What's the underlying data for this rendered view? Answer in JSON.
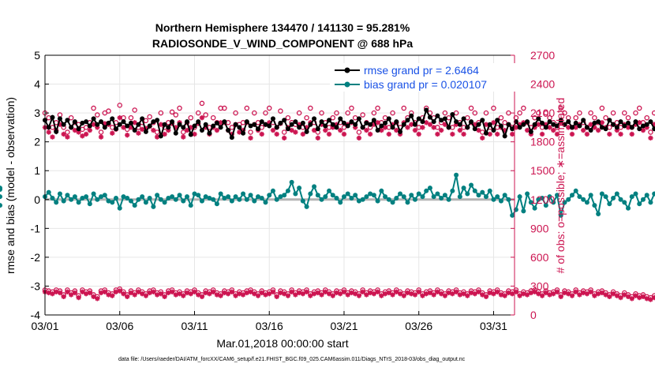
{
  "chart_data": {
    "type": "line",
    "title_line1": "Northern Hemisphere 134470 / 141130 = 95.281%",
    "title_line2": "RADIOSONDE_V_WIND_COMPONENT @ 688 hPa",
    "xlabel": "Mar.01,2018 00:00:00 start",
    "ylabel_left": "rmse and bias (model - observation)",
    "ylabel_right": "# of obs: o=possible; ∗=assimilated",
    "footnote": "data file: /Users/raeder/DAI/ATM_forcXX/CAM6_setup/f.e21.FHIST_BGC.f09_025.CAM6assim.011/Diags_NTrS_2018-03/obs_diag_output.nc",
    "xlim": [
      0,
      31.4
    ],
    "ylim_left": [
      -4,
      5
    ],
    "ylim_right": [
      0,
      2700
    ],
    "x_tick_values": [
      0,
      5,
      10,
      15,
      20,
      25,
      30
    ],
    "x_tick_labels": [
      "03/01",
      "03/06",
      "03/11",
      "03/16",
      "03/21",
      "03/26",
      "03/31"
    ],
    "y_left_ticks": [
      -4,
      -3,
      -2,
      -1,
      0,
      1,
      2,
      3,
      4,
      5
    ],
    "y_right_ticks": [
      0,
      300,
      600,
      900,
      1200,
      1500,
      1800,
      2100,
      2400,
      2700
    ],
    "grid": true,
    "legend": {
      "placement": "top-right",
      "entries": [
        "rmse grand pr = 2.6464",
        "bias grand pr = 0.020107"
      ]
    },
    "colors": {
      "rmse": "#000000",
      "bias": "#008080",
      "obs_count": "#cc1551",
      "zero_line": "#b3b3b3",
      "grid": "#e6e6e6"
    },
    "x_step_days": 0.25,
    "rmse": [
      2.75,
      2.5,
      2.85,
      2.35,
      2.8,
      2.6,
      2.75,
      2.5,
      2.7,
      2.45,
      2.65,
      2.7,
      2.55,
      2.8,
      2.6,
      2.7,
      2.5,
      2.65,
      2.8,
      2.45,
      2.6,
      2.7,
      2.55,
      2.65,
      2.4,
      2.6,
      2.8,
      2.35,
      2.55,
      2.7,
      2.75,
      2.2,
      2.6,
      2.5,
      2.7,
      2.3,
      2.6,
      2.5,
      2.7,
      2.25,
      2.55,
      2.7,
      2.4,
      2.6,
      2.3,
      2.55,
      2.65,
      2.5,
      2.7,
      2.4,
      2.15,
      2.6,
      2.5,
      2.3,
      2.7,
      2.55,
      2.6,
      2.45,
      2.7,
      2.6,
      2.55,
      2.8,
      2.5,
      2.65,
      2.75,
      2.45,
      2.6,
      2.7,
      2.5,
      2.65,
      2.35,
      2.6,
      2.8,
      2.45,
      2.7,
      2.55,
      2.75,
      2.6,
      2.5,
      2.8,
      2.65,
      2.55,
      2.7,
      2.6,
      2.8,
      2.5,
      2.65,
      2.6,
      2.75,
      2.4,
      2.55,
      2.65,
      2.8,
      2.5,
      2.7,
      2.35,
      2.6,
      2.75,
      2.9,
      2.6,
      2.8,
      2.7,
      3.1,
      2.85,
      2.7,
      2.9,
      2.75,
      2.8,
      2.5,
      2.95,
      2.7,
      2.6,
      2.8,
      2.5,
      2.7,
      2.45,
      2.6,
      2.75,
      2.3,
      2.6,
      2.4,
      2.75,
      2.55,
      2.2,
      2.6,
      2.45,
      2.7,
      2.5,
      2.6,
      2.7,
      2.35,
      2.6,
      2.8,
      2.65,
      2.5,
      2.7,
      2.6,
      2.55,
      2.75,
      2.6,
      2.7,
      2.5,
      2.65,
      2.55,
      2.75,
      2.5,
      2.4,
      2.65,
      2.7,
      2.5,
      2.45,
      2.75,
      2.6,
      2.5,
      2.7,
      2.55,
      2.65,
      2.5,
      2.7,
      2.45,
      2.55,
      2.6,
      2.7,
      2.45,
      2.6,
      2.5,
      2.7,
      2.55,
      2.65,
      2.5,
      2.6,
      2.55,
      2.7,
      2.4
    ],
    "bias": [
      0.1,
      0.25,
      0.05,
      -0.1,
      0.2,
      -0.05,
      0.15,
      0.0,
      0.1,
      -0.1,
      0.05,
      0.1,
      -0.15,
      0.2,
      0.0,
      0.1,
      0.15,
      -0.05,
      -0.1,
      0.05,
      -0.3,
      0.1,
      0.05,
      -0.05,
      -0.2,
      0.0,
      0.1,
      -0.1,
      0.05,
      -0.25,
      0.15,
      0.0,
      -0.1,
      0.05,
      0.1,
      0.0,
      0.15,
      -0.05,
      0.1,
      -0.2,
      0.2,
      0.15,
      -0.05,
      0.1,
      0.05,
      0.0,
      -0.15,
      0.2,
      0.05,
      0.1,
      -0.05,
      0.1,
      0.0,
      0.2,
      0.0,
      0.15,
      -0.05,
      0.1,
      0.05,
      -0.1,
      0.15,
      0.3,
      0.0,
      0.1,
      0.15,
      0.3,
      0.6,
      0.2,
      0.4,
      -0.05,
      -0.25,
      0.2,
      0.45,
      0.15,
      0.0,
      0.1,
      0.3,
      0.15,
      0.05,
      -0.1,
      0.1,
      0.2,
      0.05,
      0.15,
      -0.05,
      0.0,
      0.1,
      0.2,
      0.15,
      -0.05,
      0.3,
      0.1,
      0.0,
      -0.1,
      0.05,
      0.2,
      0.1,
      -0.1,
      0.15,
      0.0,
      0.2,
      0.1,
      0.3,
      0.4,
      0.1,
      0.2,
      0.05,
      0.15,
      0.0,
      0.3,
      0.85,
      0.1,
      0.4,
      0.2,
      0.5,
      0.3,
      0.15,
      0.25,
      0.1,
      0.3,
      0.0,
      0.1,
      -0.05,
      0.15,
      0.0,
      -0.55,
      -0.35,
      0.1,
      -0.4,
      0.2,
      -0.1,
      -0.3,
      0.0,
      0.05,
      -0.2,
      0.1,
      -0.1,
      0.15,
      -0.55,
      -0.1,
      0.0,
      0.15,
      0.3,
      0.1,
      0.0,
      -0.1,
      0.15,
      -0.2,
      -0.5,
      0.2,
      0.1,
      -0.15,
      0.05,
      0.2,
      0.0,
      -0.1,
      -0.3,
      0.1,
      0.2,
      -0.15,
      0.0,
      0.15,
      -0.1,
      0.2,
      0.0,
      -0.35,
      0.1,
      -0.2,
      0.05,
      -0.15,
      0.1,
      -0.25,
      0.0,
      0.2,
      0.35,
      0.4,
      0.1,
      -0.2
    ],
    "possible_obs": [
      2100,
      2050,
      1950,
      2000,
      2080,
      1950,
      1900,
      2050,
      2000,
      1980,
      1930,
      1950,
      2000,
      2150,
      2080,
      1900,
      2100,
      2120,
      1950,
      2000,
      2180,
      2050,
      1930,
      2050,
      2130,
      1950,
      2000,
      2020,
      2060,
      2000,
      1900,
      2100,
      1950,
      2000,
      2110,
      2080,
      2150,
      1900,
      2000,
      2050,
      1950,
      2100,
      2200,
      2080,
      1950,
      2050,
      2000,
      2150,
      2150,
      2000,
      1950,
      2100,
      1980,
      2000,
      2150,
      1900,
      2100,
      2000,
      1950,
      2100,
      2150,
      2000,
      1950,
      2120,
      1900,
      2050,
      2000,
      1980,
      2100,
      1950,
      2050,
      2150,
      2000,
      1900,
      2100,
      2000,
      1950,
      2050,
      2100,
      2000,
      1950,
      2100,
      2150,
      2050,
      1900,
      2080,
      2000,
      1950,
      2100,
      2150,
      2000,
      2050,
      1950,
      2100,
      2000,
      1950,
      2150,
      2050,
      2100,
      2000,
      1950,
      2050,
      2150,
      2100,
      2050,
      1950,
      2000,
      2100,
      2050,
      1950,
      2100,
      2000,
      1950,
      2050,
      2150,
      2100,
      2000,
      1900,
      2100,
      1950,
      2150,
      1950,
      2050,
      2000,
      2100,
      1950,
      2050,
      2100,
      2150,
      2000,
      1950,
      2050,
      2100,
      1950,
      2100,
      2050,
      2000,
      1950,
      2150,
      2100,
      2050,
      1950,
      2050,
      2100,
      2000,
      1950,
      2100,
      2050,
      2000,
      2150,
      2050,
      1950,
      2100,
      2000,
      1950,
      2100,
      2050,
      1950,
      2100,
      2150,
      2000,
      2050,
      1900,
      2100,
      2000,
      1950,
      2050,
      1950,
      2100,
      2000,
      2050,
      2000,
      1900,
      2050,
      1950,
      2100
    ],
    "assimilated_obs": [
      1950,
      1900,
      1850,
      1920,
      1980,
      1880,
      1850,
      1950,
      1920,
      1900,
      1860,
      1880,
      1920,
      1980,
      1950,
      1850,
      1990,
      1980,
      1890,
      1930,
      2050,
      1950,
      1870,
      1950,
      2000,
      1890,
      1930,
      1940,
      1960,
      1920,
      1850,
      1980,
      1880,
      1920,
      1990,
      1950,
      2000,
      1850,
      1920,
      1950,
      1880,
      1990,
      2050,
      1950,
      1880,
      1950,
      1920,
      2000,
      2000,
      1920,
      1880,
      1980,
      1900,
      1920,
      2000,
      1840,
      1980,
      1920,
      1880,
      1980,
      2000,
      1920,
      1880,
      1990,
      1840,
      1950,
      1920,
      1900,
      1980,
      1880,
      1950,
      2000,
      1920,
      1840,
      1980,
      1920,
      1880,
      1950,
      1980,
      1920,
      1880,
      1980,
      2000,
      1950,
      1840,
      1950,
      1920,
      1880,
      1980,
      2000,
      1920,
      1950,
      1880,
      1980,
      1920,
      1880,
      2000,
      1950,
      1980,
      1920,
      1880,
      1950,
      2000,
      1980,
      1950,
      1880,
      1920,
      1980,
      1950,
      1880,
      1980,
      1920,
      1880,
      1950,
      2000,
      1980,
      1920,
      1840,
      1980,
      1880,
      2000,
      1880,
      1950,
      1920,
      1980,
      1880,
      1950,
      1980,
      2000,
      1920,
      1880,
      1950,
      1980,
      1880,
      1980,
      1950,
      1920,
      1880,
      2000,
      1980,
      1950,
      1880,
      1950,
      1980,
      1920,
      1880,
      1980,
      1950,
      1920,
      2000,
      1950,
      1880,
      1980,
      1920,
      1880,
      1980,
      1950,
      1880,
      1980,
      2000,
      1920,
      1950,
      1840,
      1980,
      1920,
      1880,
      1950,
      1880,
      1980,
      1920,
      1950,
      1920,
      1840,
      1950,
      1880,
      1980
    ],
    "low_possible": [
      260,
      250,
      240,
      260,
      250,
      210,
      260,
      230,
      250,
      200,
      260,
      240,
      250,
      210,
      190,
      250,
      260,
      230,
      220,
      260,
      270,
      240,
      210,
      250,
      230,
      260,
      240,
      220,
      250,
      260,
      230,
      240,
      210,
      250,
      260,
      230,
      240,
      220,
      250,
      240,
      260,
      230,
      210,
      250,
      240,
      260,
      230,
      220,
      250,
      240,
      260,
      220,
      240,
      230,
      250,
      260,
      240,
      220,
      250,
      230,
      240,
      260,
      210,
      250,
      240,
      220,
      260,
      230,
      250,
      240,
      260,
      220,
      240,
      250,
      230,
      260,
      240,
      220,
      250,
      240,
      260,
      230,
      250,
      240,
      220,
      260,
      230,
      250,
      240,
      260,
      220,
      240,
      250,
      230,
      260,
      240,
      220,
      250,
      240,
      230,
      260,
      220,
      240,
      250,
      230,
      260,
      240,
      220,
      250,
      240,
      260,
      230,
      240,
      220,
      250,
      240,
      260,
      230,
      210,
      250,
      240,
      260,
      230,
      220,
      250,
      240,
      260,
      220,
      240,
      230,
      250,
      260,
      240,
      220,
      250,
      230,
      240,
      260,
      210,
      250,
      240,
      220,
      260,
      230,
      250,
      240,
      260,
      220,
      240,
      250,
      230,
      210,
      240,
      220,
      200,
      230,
      210,
      190,
      220,
      200,
      210,
      190,
      180,
      200,
      190,
      170,
      180,
      160,
      150,
      130
    ],
    "low_assimilated": [
      240,
      230,
      220,
      240,
      230,
      190,
      240,
      210,
      230,
      180,
      240,
      220,
      230,
      190,
      170,
      230,
      240,
      210,
      200,
      240,
      250,
      220,
      190,
      230,
      210,
      240,
      220,
      200,
      230,
      240,
      210,
      220,
      190,
      230,
      240,
      210,
      220,
      200,
      230,
      220,
      240,
      210,
      190,
      230,
      220,
      240,
      210,
      200,
      230,
      220,
      240,
      200,
      220,
      210,
      230,
      240,
      220,
      200,
      230,
      210,
      220,
      240,
      190,
      230,
      220,
      200,
      240,
      210,
      230,
      220,
      240,
      200,
      220,
      230,
      210,
      240,
      220,
      200,
      230,
      220,
      240,
      210,
      230,
      220,
      200,
      240,
      210,
      230,
      220,
      240,
      200,
      220,
      230,
      210,
      240,
      220,
      200,
      230,
      220,
      210,
      240,
      200,
      220,
      230,
      210,
      240,
      220,
      200,
      230,
      220,
      240,
      210,
      220,
      200,
      230,
      220,
      240,
      210,
      190,
      230,
      220,
      240,
      210,
      200,
      230,
      220,
      240,
      200,
      220,
      210,
      230,
      240,
      220,
      200,
      230,
      210,
      220,
      240,
      190,
      230,
      220,
      200,
      240,
      210,
      230,
      220,
      240,
      200,
      220,
      230,
      210,
      190,
      220,
      200,
      180,
      210,
      190,
      170,
      200,
      180,
      190,
      170,
      160,
      180,
      170,
      150,
      160,
      140,
      130,
      110
    ]
  }
}
